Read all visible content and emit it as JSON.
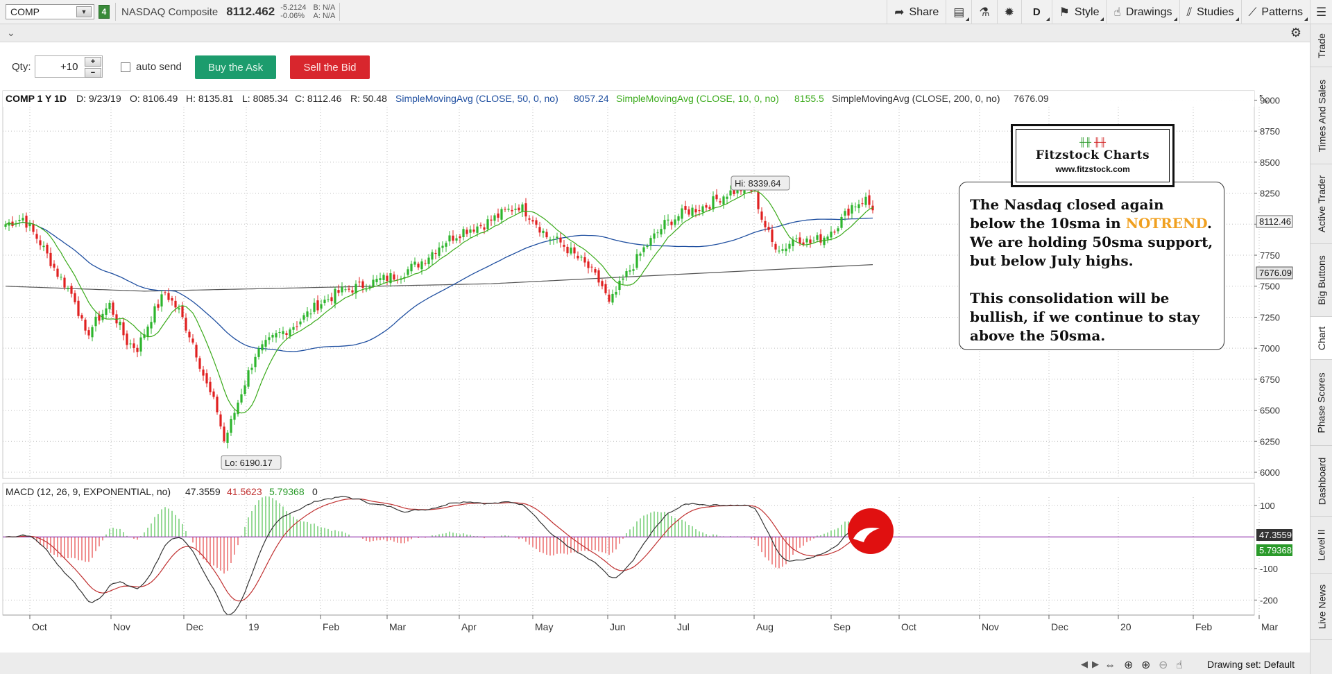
{
  "toolbar": {
    "symbol": "COMP",
    "link_badge": "4",
    "description": "NASDAQ Composite",
    "last": "8112.462",
    "change": "-5.2124",
    "change_pct": "-0.06%",
    "bid": "B: N/A",
    "ask": "A: N/A",
    "share_label": "Share",
    "aggregation": "D",
    "style_label": "Style",
    "drawings_label": "Drawings",
    "studies_label": "Studies",
    "patterns_label": "Patterns"
  },
  "order": {
    "qty_label": "Qty:",
    "qty_value": "+10",
    "autosend_label": "auto send",
    "buy_label": "Buy the Ask",
    "sell_label": "Sell the Bid"
  },
  "side_tabs": [
    "Trade",
    "Times And Sales",
    "Active Trader",
    "Big Buttons",
    "Chart",
    "Phase Scores",
    "Dashboard",
    "Level II",
    "Live News"
  ],
  "header": {
    "title": "COMP 1 Y 1D",
    "date": "D: 9/23/19",
    "open": "O: 8106.49",
    "high": "H: 8135.81",
    "low": "L: 8085.34",
    "close": "C: 8112.46",
    "range": "R: 50.48",
    "sma50_label": "SimpleMovingAvg (CLOSE, 50, 0, no)",
    "sma50_value": "8057.24",
    "sma10_label": "SimpleMovingAvg (CLOSE, 10, 0, no)",
    "sma10_value": "8155.5",
    "sma200_label": "SimpleMovingAvg (CLOSE, 200, 0, no)",
    "sma200_value": "7676.09"
  },
  "price_labels": {
    "hi": "Hi: 8339.64",
    "lo": "Lo: 6190.17",
    "last_tag": "8112.46",
    "sma200_tag": "7676.09"
  },
  "macd": {
    "label": "MACD (12, 26, 9, EXPONENTIAL, no)",
    "value": "47.3559",
    "avg": "41.5623",
    "diff": "5.79368",
    "zero": "0",
    "value_tag": "47.3559",
    "diff_tag": "5.79368"
  },
  "annotation": {
    "line1a": "The Nasdaq closed again below the 10sma in ",
    "notrend": "NOTREND",
    "line1b": ".  We are holding 50sma support, but below July highs.",
    "line2": "This consolidation will be bullish, if we continue to stay above the 50sma."
  },
  "logo": {
    "title": "Fitzstock Charts",
    "url": "www.fitzstock.com"
  },
  "footer": {
    "drawing_set": "Drawing set: Default"
  },
  "colors": {
    "up": "#2db52d",
    "down": "#e02020",
    "sma10": "#3aaa1a",
    "sma50": "#1f4fa0",
    "sma200": "#555555",
    "macd_line": "#333333",
    "macd_avg": "#c03030",
    "zero_line": "#8a2aa8"
  },
  "chart_data": {
    "type": "candlestick",
    "price_axis": [
      9000,
      8750,
      8500,
      8250,
      8000,
      7750,
      7500,
      7250,
      7000,
      6750,
      6500,
      6250,
      6000
    ],
    "macd_axis": [
      100,
      0,
      -100,
      -200
    ],
    "ylim": [
      5950,
      9075
    ],
    "macd_ylim": [
      -230,
      115
    ],
    "x_ticks": [
      "Oct",
      "Nov",
      "Dec",
      "19",
      "Feb",
      "Mar",
      "Apr",
      "May",
      "Jun",
      "Jul",
      "Aug",
      "Sep",
      "Oct",
      "Nov",
      "Dec",
      "20",
      "Feb",
      "Mar"
    ],
    "price_keypoints": [
      [
        0,
        8000
      ],
      [
        5,
        8050
      ],
      [
        10,
        7850
      ],
      [
        15,
        7600
      ],
      [
        20,
        7400
      ],
      [
        23,
        7100
      ],
      [
        27,
        7250
      ],
      [
        30,
        7350
      ],
      [
        35,
        7050
      ],
      [
        38,
        7000
      ],
      [
        42,
        7250
      ],
      [
        46,
        7450
      ],
      [
        50,
        7300
      ],
      [
        54,
        7050
      ],
      [
        58,
        6700
      ],
      [
        61,
        6500
      ],
      [
        63,
        6250
      ],
      [
        65,
        6400
      ],
      [
        68,
        6650
      ],
      [
        72,
        6950
      ],
      [
        78,
        7100
      ],
      [
        84,
        7200
      ],
      [
        90,
        7350
      ],
      [
        96,
        7450
      ],
      [
        102,
        7500
      ],
      [
        108,
        7550
      ],
      [
        114,
        7600
      ],
      [
        120,
        7700
      ],
      [
        126,
        7850
      ],
      [
        132,
        7950
      ],
      [
        138,
        8000
      ],
      [
        144,
        8100
      ],
      [
        148,
        8150
      ],
      [
        152,
        8050
      ],
      [
        156,
        7900
      ],
      [
        160,
        7850
      ],
      [
        164,
        7750
      ],
      [
        168,
        7650
      ],
      [
        172,
        7500
      ],
      [
        174,
        7350
      ],
      [
        178,
        7550
      ],
      [
        184,
        7800
      ],
      [
        190,
        8000
      ],
      [
        196,
        8100
      ],
      [
        202,
        8150
      ],
      [
        208,
        8250
      ],
      [
        214,
        8300
      ],
      [
        216,
        8250
      ],
      [
        218,
        8050
      ],
      [
        221,
        7850
      ],
      [
        224,
        7800
      ],
      [
        228,
        7900
      ],
      [
        232,
        7850
      ],
      [
        236,
        7900
      ],
      [
        240,
        8000
      ],
      [
        244,
        8150
      ],
      [
        248,
        8200
      ],
      [
        250,
        8112
      ]
    ]
  }
}
